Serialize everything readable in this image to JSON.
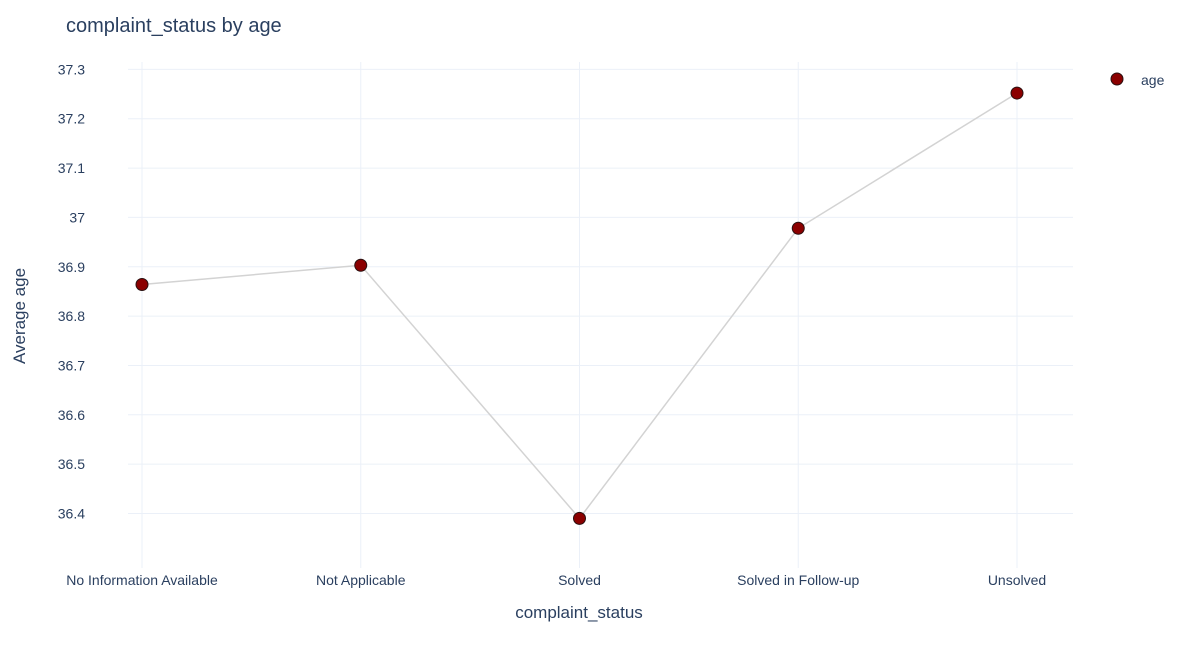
{
  "chart_data": {
    "type": "line",
    "title": "complaint_status by age",
    "xlabel": "complaint_status",
    "ylabel": "Average age",
    "categories": [
      "No Information Available",
      "Not Applicable",
      "Solved",
      "Solved in Follow-up",
      "Unsolved"
    ],
    "series": [
      {
        "name": "age",
        "values": [
          36.864,
          36.903,
          36.39,
          36.978,
          37.252
        ]
      }
    ],
    "ylim": [
      36.33,
      37.315
    ],
    "yticks": [
      36.4,
      36.5,
      36.6,
      36.7,
      36.8,
      36.9,
      37,
      37.1,
      37.2,
      37.3
    ],
    "ytick_labels": [
      "36.4",
      "36.5",
      "36.6",
      "36.7",
      "36.8",
      "36.9",
      "37",
      "37.1",
      "37.2",
      "37.3"
    ],
    "grid": true,
    "legend": "top-right",
    "colors": {
      "marker_fill": "#8b0000",
      "marker_stroke": "#2a1010",
      "line": "#d3d3d3",
      "grid": "#ebf0f8",
      "text": "#2a3f5f"
    }
  }
}
